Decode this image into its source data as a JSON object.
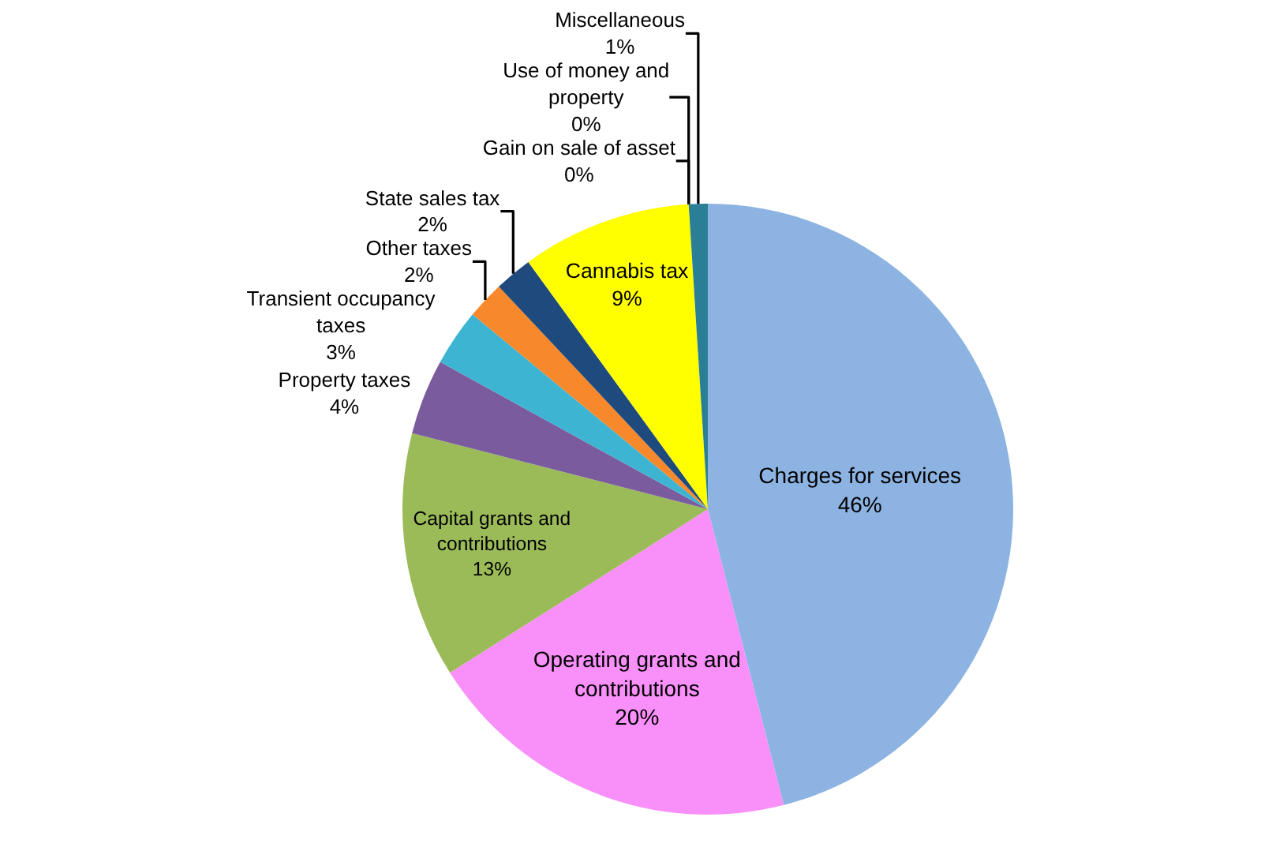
{
  "chart_data": {
    "type": "pie",
    "categories": [
      "Charges for services",
      "Operating grants and contributions",
      "Capital grants and contributions",
      "Property taxes",
      "Transient occupancy taxes",
      "Other taxes",
      "State sales tax",
      "Cannabis tax",
      "Gain on sale of asset",
      "Use of money and property",
      "Miscellaneous"
    ],
    "values": [
      46,
      20,
      13,
      4,
      3,
      2,
      2,
      9,
      0,
      0,
      1
    ],
    "value_labels": [
      "46%",
      "20%",
      "13%",
      "4%",
      "3%",
      "2%",
      "2%",
      "9%",
      "0%",
      "0%",
      "1%"
    ],
    "colors": [
      "#8db3e2",
      "#f98ff9",
      "#9bbb59",
      "#7a5c9e",
      "#3cb4d2",
      "#f7892c",
      "#1f4a7d",
      "#ffff00",
      "#c0504d",
      "#7f3f3f",
      "#2a7f96"
    ],
    "legend": false
  }
}
